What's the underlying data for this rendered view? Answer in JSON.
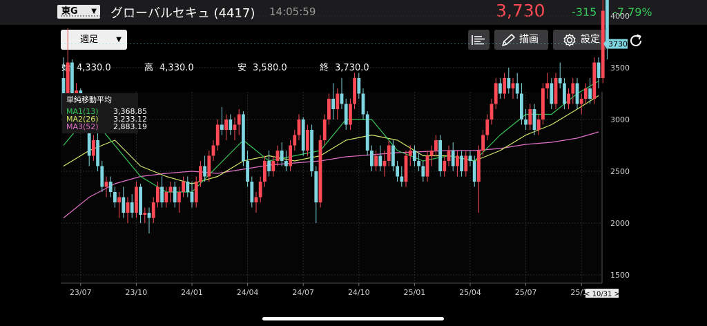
{
  "header": {
    "market": "東G",
    "name": "グローバルセキュ (4417)",
    "time": "14:05:59",
    "price": "3,730",
    "change": "-315",
    "change_pct": "-7.79%"
  },
  "toolbar": {
    "period": "週足",
    "draw_label": "描画",
    "settings_label": "設定"
  },
  "ohlc": {
    "open_label": "始",
    "open": "4,330.0",
    "high_label": "高",
    "high": "4,330.0",
    "low_label": "安",
    "low": "3,580.0",
    "close_label": "終",
    "close": "3,730.0"
  },
  "legend": {
    "title": "単純移動平均",
    "items": [
      {
        "label": "MA1(13)",
        "value": "3,368.85"
      },
      {
        "label": "MA2(26)",
        "value": "3,233.12"
      },
      {
        "label": "MA3(52)",
        "value": "2,883.19"
      }
    ]
  },
  "colors": {
    "up": "#ff4a56",
    "down": "#7fd6e0",
    "ma1": "#35c759",
    "ma2": "#d4e86a",
    "ma3": "#e070c8",
    "change": "#35c759"
  },
  "chart_data": {
    "type": "candlestick",
    "ylim": [
      1350,
      5050
    ],
    "yticks": [
      1500,
      2000,
      2500,
      3000,
      3500,
      4000,
      4500,
      5000
    ],
    "xticks": [
      {
        "label": "23/07",
        "index": 4
      },
      {
        "label": "23/10",
        "index": 17
      },
      {
        "label": "24/01",
        "index": 30
      },
      {
        "label": "24/04",
        "index": 43
      },
      {
        "label": "24/07",
        "index": 56
      },
      {
        "label": "24/10",
        "index": 69
      },
      {
        "label": "25/01",
        "index": 82
      },
      {
        "label": "25/04",
        "index": 95
      },
      {
        "label": "25/07",
        "index": 108
      },
      {
        "label": "25/10",
        "index": 121
      }
    ],
    "price_tag": "3730",
    "date_tag": "< 10/31 >",
    "candles": [
      [
        3400,
        3600,
        2980,
        3050
      ],
      [
        3050,
        3880,
        3000,
        3550
      ],
      [
        3550,
        3580,
        3000,
        3100
      ],
      [
        3100,
        3350,
        3050,
        3280
      ],
      [
        3280,
        3300,
        3000,
        3100
      ],
      [
        3100,
        3150,
        2950,
        3000
      ],
      [
        3000,
        3080,
        2550,
        2650
      ],
      [
        2650,
        2850,
        2600,
        2800
      ],
      [
        2800,
        2880,
        2500,
        2550
      ],
      [
        2550,
        2600,
        2300,
        2350
      ],
      [
        2350,
        2450,
        2250,
        2400
      ],
      [
        2400,
        2450,
        2250,
        2300
      ],
      [
        2300,
        2350,
        2150,
        2200
      ],
      [
        2200,
        2300,
        2050,
        2250
      ],
      [
        2250,
        2350,
        2050,
        2100
      ],
      [
        2100,
        2250,
        2000,
        2200
      ],
      [
        2200,
        2280,
        2050,
        2100
      ],
      [
        2100,
        2400,
        2050,
        2350
      ],
      [
        2350,
        2380,
        2000,
        2080
      ],
      [
        2080,
        2150,
        2000,
        2100
      ],
      [
        2100,
        2150,
        1900,
        2050
      ],
      [
        2050,
        2250,
        2000,
        2200
      ],
      [
        2200,
        2400,
        2150,
        2350
      ],
      [
        2350,
        2450,
        2150,
        2200
      ],
      [
        2200,
        2350,
        2150,
        2300
      ],
      [
        2300,
        2400,
        2200,
        2350
      ],
      [
        2350,
        2400,
        2150,
        2200
      ],
      [
        2200,
        2350,
        2100,
        2300
      ],
      [
        2300,
        2450,
        2250,
        2400
      ],
      [
        2400,
        2450,
        2250,
        2300
      ],
      [
        2300,
        2400,
        2150,
        2200
      ],
      [
        2200,
        2450,
        2150,
        2400
      ],
      [
        2400,
        2600,
        2350,
        2550
      ],
      [
        2550,
        2650,
        2400,
        2450
      ],
      [
        2450,
        2700,
        2400,
        2650
      ],
      [
        2650,
        2800,
        2600,
        2750
      ],
      [
        2750,
        3000,
        2700,
        2950
      ],
      [
        2950,
        3120,
        2850,
        2900
      ],
      [
        2900,
        3050,
        2800,
        3000
      ],
      [
        3000,
        3050,
        2850,
        2900
      ],
      [
        2900,
        3020,
        2800,
        2950
      ],
      [
        2950,
        3100,
        2850,
        3050
      ],
      [
        3050,
        3080,
        2550,
        2600
      ],
      [
        2600,
        2700,
        2350,
        2400
      ],
      [
        2400,
        2450,
        2150,
        2200
      ],
      [
        2200,
        2300,
        2100,
        2250
      ],
      [
        2250,
        2450,
        2200,
        2400
      ],
      [
        2400,
        2650,
        2350,
        2600
      ],
      [
        2600,
        2700,
        2450,
        2500
      ],
      [
        2500,
        2650,
        2450,
        2600
      ],
      [
        2600,
        2750,
        2550,
        2700
      ],
      [
        2700,
        2780,
        2550,
        2600
      ],
      [
        2600,
        2700,
        2500,
        2550
      ],
      [
        2550,
        2800,
        2500,
        2750
      ],
      [
        2750,
        2900,
        2700,
        2850
      ],
      [
        2850,
        3050,
        2800,
        3000
      ],
      [
        3000,
        3020,
        2650,
        2700
      ],
      [
        2700,
        2950,
        2650,
        2900
      ],
      [
        2900,
        2950,
        2450,
        2500
      ],
      [
        2500,
        2550,
        2000,
        2200
      ],
      [
        2200,
        2850,
        2150,
        2800
      ],
      [
        2800,
        3050,
        2750,
        3000
      ],
      [
        3000,
        3250,
        2950,
        3200
      ],
      [
        3200,
        3350,
        3000,
        3100
      ],
      [
        3100,
        3300,
        3000,
        3250
      ],
      [
        3250,
        3400,
        3100,
        3150
      ],
      [
        3150,
        3200,
        2900,
        2950
      ],
      [
        2950,
        3200,
        2900,
        3150
      ],
      [
        3150,
        3450,
        3100,
        3400
      ],
      [
        3400,
        3450,
        3200,
        3250
      ],
      [
        3250,
        3300,
        3000,
        3050
      ],
      [
        3050,
        3080,
        2650,
        2700
      ],
      [
        2700,
        2750,
        2500,
        2550
      ],
      [
        2550,
        2700,
        2500,
        2650
      ],
      [
        2650,
        2750,
        2500,
        2550
      ],
      [
        2550,
        2700,
        2450,
        2600
      ],
      [
        2600,
        2800,
        2550,
        2750
      ],
      [
        2750,
        2800,
        2500,
        2550
      ],
      [
        2550,
        2600,
        2400,
        2450
      ],
      [
        2450,
        2550,
        2350,
        2400
      ],
      [
        2400,
        2700,
        2350,
        2650
      ],
      [
        2650,
        2750,
        2550,
        2700
      ],
      [
        2700,
        2750,
        2550,
        2600
      ],
      [
        2600,
        2680,
        2500,
        2550
      ],
      [
        2550,
        2600,
        2400,
        2450
      ],
      [
        2450,
        2700,
        2400,
        2650
      ],
      [
        2650,
        2750,
        2550,
        2700
      ],
      [
        2700,
        2850,
        2650,
        2800
      ],
      [
        2800,
        2850,
        2450,
        2500
      ],
      [
        2500,
        2650,
        2450,
        2600
      ],
      [
        2600,
        2750,
        2550,
        2700
      ],
      [
        2700,
        2780,
        2500,
        2550
      ],
      [
        2550,
        2700,
        2450,
        2650
      ],
      [
        2650,
        2700,
        2450,
        2500
      ],
      [
        2500,
        2700,
        2450,
        2650
      ],
      [
        2650,
        2700,
        2550,
        2600
      ],
      [
        2600,
        2650,
        2350,
        2400
      ],
      [
        2400,
        2750,
        2100,
        2700
      ],
      [
        2700,
        2900,
        2650,
        2850
      ],
      [
        2850,
        3050,
        2800,
        3000
      ],
      [
        3000,
        3200,
        2950,
        3150
      ],
      [
        3150,
        3400,
        3100,
        3350
      ],
      [
        3350,
        3400,
        3200,
        3250
      ],
      [
        3250,
        3450,
        3200,
        3400
      ],
      [
        3400,
        3500,
        3250,
        3300
      ],
      [
        3300,
        3400,
        3200,
        3350
      ],
      [
        3350,
        3450,
        3200,
        3250
      ],
      [
        3250,
        3350,
        2950,
        3000
      ],
      [
        3000,
        3100,
        2900,
        2950
      ],
      [
        2950,
        3150,
        2900,
        3100
      ],
      [
        3100,
        3150,
        2850,
        2900
      ],
      [
        2900,
        3050,
        2850,
        3000
      ],
      [
        3000,
        3350,
        2950,
        3300
      ],
      [
        3300,
        3450,
        3200,
        3350
      ],
      [
        3350,
        3400,
        3100,
        3150
      ],
      [
        3150,
        3450,
        3100,
        3400
      ],
      [
        3400,
        3550,
        3300,
        3350
      ],
      [
        3350,
        3400,
        3100,
        3150
      ],
      [
        3150,
        3300,
        3100,
        3250
      ],
      [
        3250,
        3400,
        3150,
        3350
      ],
      [
        3350,
        3400,
        3100,
        3150
      ],
      [
        3150,
        3250,
        3050,
        3200
      ],
      [
        3200,
        3350,
        3150,
        3300
      ],
      [
        3300,
        3400,
        3150,
        3200
      ],
      [
        3200,
        3600,
        3150,
        3550
      ],
      [
        3550,
        3600,
        3300,
        3400
      ],
      [
        3400,
        4600,
        3350,
        4050
      ],
      [
        4330,
        4330,
        3580,
        3730
      ]
    ],
    "ma1": [
      [
        0,
        2750
      ],
      [
        6,
        3050
      ],
      [
        12,
        2750
      ],
      [
        18,
        2450
      ],
      [
        24,
        2300
      ],
      [
        30,
        2300
      ],
      [
        36,
        2550
      ],
      [
        42,
        2800
      ],
      [
        48,
        2600
      ],
      [
        54,
        2650
      ],
      [
        60,
        2700
      ],
      [
        66,
        3000
      ],
      [
        72,
        3000
      ],
      [
        78,
        2700
      ],
      [
        84,
        2600
      ],
      [
        90,
        2650
      ],
      [
        96,
        2600
      ],
      [
        102,
        2850
      ],
      [
        108,
        3050
      ],
      [
        114,
        3050
      ],
      [
        120,
        3250
      ],
      [
        125,
        3370
      ]
    ],
    "ma2": [
      [
        0,
        2550
      ],
      [
        6,
        2700
      ],
      [
        12,
        2800
      ],
      [
        18,
        2550
      ],
      [
        24,
        2450
      ],
      [
        30,
        2380
      ],
      [
        36,
        2450
      ],
      [
        42,
        2600
      ],
      [
        48,
        2650
      ],
      [
        54,
        2600
      ],
      [
        60,
        2650
      ],
      [
        66,
        2800
      ],
      [
        72,
        2850
      ],
      [
        78,
        2800
      ],
      [
        84,
        2650
      ],
      [
        90,
        2650
      ],
      [
        96,
        2600
      ],
      [
        102,
        2700
      ],
      [
        108,
        2850
      ],
      [
        114,
        2950
      ],
      [
        120,
        3100
      ],
      [
        125,
        3230
      ]
    ],
    "ma3": [
      [
        0,
        2050
      ],
      [
        6,
        2250
      ],
      [
        12,
        2380
      ],
      [
        18,
        2450
      ],
      [
        24,
        2480
      ],
      [
        30,
        2500
      ],
      [
        36,
        2480
      ],
      [
        42,
        2520
      ],
      [
        48,
        2560
      ],
      [
        54,
        2580
      ],
      [
        60,
        2600
      ],
      [
        66,
        2640
      ],
      [
        72,
        2660
      ],
      [
        78,
        2680
      ],
      [
        84,
        2690
      ],
      [
        90,
        2700
      ],
      [
        96,
        2700
      ],
      [
        102,
        2720
      ],
      [
        108,
        2760
      ],
      [
        114,
        2780
      ],
      [
        120,
        2820
      ],
      [
        125,
        2880
      ]
    ]
  }
}
